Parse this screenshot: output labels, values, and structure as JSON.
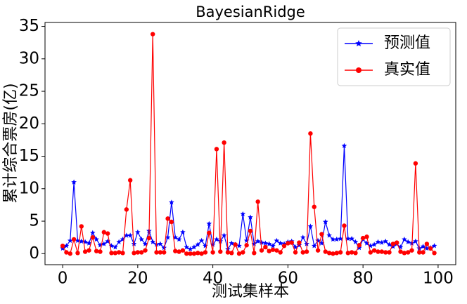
{
  "chart_data": {
    "type": "line",
    "title": "BayesianRidge",
    "x_label": "测试集样本",
    "y_label": "累计综合票房(亿)",
    "x": [
      0,
      1,
      2,
      3,
      4,
      5,
      6,
      7,
      8,
      9,
      10,
      11,
      12,
      13,
      14,
      15,
      16,
      17,
      18,
      19,
      20,
      21,
      22,
      23,
      24,
      25,
      26,
      27,
      28,
      29,
      30,
      31,
      32,
      33,
      34,
      35,
      36,
      37,
      38,
      39,
      40,
      41,
      42,
      43,
      44,
      45,
      46,
      47,
      48,
      49,
      50,
      51,
      52,
      53,
      54,
      55,
      56,
      57,
      58,
      59,
      60,
      61,
      62,
      63,
      64,
      65,
      66,
      67,
      68,
      69,
      70,
      71,
      72,
      73,
      74,
      75,
      76,
      77,
      78,
      79,
      80,
      81,
      82,
      83,
      84,
      85,
      86,
      87,
      88,
      89,
      90,
      91,
      92,
      93,
      94,
      95,
      96,
      97,
      98,
      99
    ],
    "series": [
      {
        "name": "预测值",
        "color": "#0000ff",
        "marker": "star",
        "values": [
          0.8,
          1.2,
          2,
          11,
          2,
          1.9,
          1.8,
          1.6,
          3.2,
          2.2,
          1.3,
          1.5,
          1.9,
          1.2,
          1,
          1.8,
          2.2,
          2.8,
          2.8,
          1.5,
          3.3,
          2.2,
          1.5,
          3.5,
          1.8,
          1.4,
          1.5,
          0.9,
          2.5,
          7.9,
          2.5,
          2.2,
          3.3,
          1,
          0.7,
          1,
          1.4,
          2,
          1.2,
          4.6,
          1.4,
          2.2,
          1.9,
          2.8,
          0.7,
          1.6,
          1.4,
          1.2,
          6.1,
          2,
          5.6,
          1.5,
          1.9,
          1.7,
          1.6,
          1.5,
          1.2,
          2,
          1.6,
          1.5,
          1.8,
          1.9,
          1,
          1.3,
          2.5,
          1.5,
          4.2,
          1.2,
          2,
          1.6,
          4.9,
          2.8,
          2.2,
          2.2,
          2.3,
          16.6,
          2.3,
          2.3,
          1.8,
          0.9,
          2.2,
          1.6,
          1.2,
          1.4,
          1.8,
          1.7,
          1.9,
          1.4,
          1.1,
          1.5,
          1,
          2.2,
          1.8,
          1.6,
          1.9,
          0.8,
          1.1,
          0.8,
          0.9,
          1.2
        ]
      },
      {
        "name": "真实值",
        "color": "#ff0000",
        "marker": "circle",
        "values": [
          1.2,
          0.2,
          0,
          2.2,
          0.1,
          4.2,
          0.3,
          0.5,
          2.5,
          0.4,
          0.3,
          3.3,
          3.1,
          0.1,
          0.1,
          0.2,
          0.1,
          6.8,
          11.3,
          0.1,
          0.2,
          0.2,
          0.5,
          2.4,
          33.8,
          0.2,
          0.2,
          0.2,
          5.4,
          4.9,
          0.4,
          0.3,
          0.5,
          0,
          0,
          0,
          0.1,
          0,
          0.2,
          3.2,
          0.2,
          16.1,
          0.3,
          17.1,
          0.2,
          0.1,
          1.4,
          0,
          0.2,
          1.3,
          3.5,
          0.1,
          8,
          0.5,
          1,
          0.4,
          0.6,
          0.5,
          0.2,
          1.2,
          1.6,
          1.7,
          0.2,
          1.7,
          0.2,
          0.3,
          18.5,
          7.2,
          0.5,
          3,
          0.3,
          0.1,
          0,
          0.1,
          0.2,
          4.3,
          0.1,
          0.2,
          0.1,
          1.3,
          2.4,
          2.6,
          0.2,
          0.5,
          0.3,
          0.3,
          0.2,
          0.2,
          1.5,
          1.7,
          0.3,
          0.1,
          0.2,
          0.5,
          13.9,
          0.2,
          0.2,
          1.5,
          0.8,
          0.1
        ]
      }
    ],
    "xlim": [
      -4.7,
      104.7
    ],
    "ylim": [
      -1.7,
      35.6
    ],
    "xticks": [
      0,
      20,
      40,
      60,
      80,
      100
    ],
    "yticks": [
      0,
      5,
      10,
      15,
      20,
      25,
      30,
      35
    ],
    "legend": "upper right",
    "grid": false
  }
}
